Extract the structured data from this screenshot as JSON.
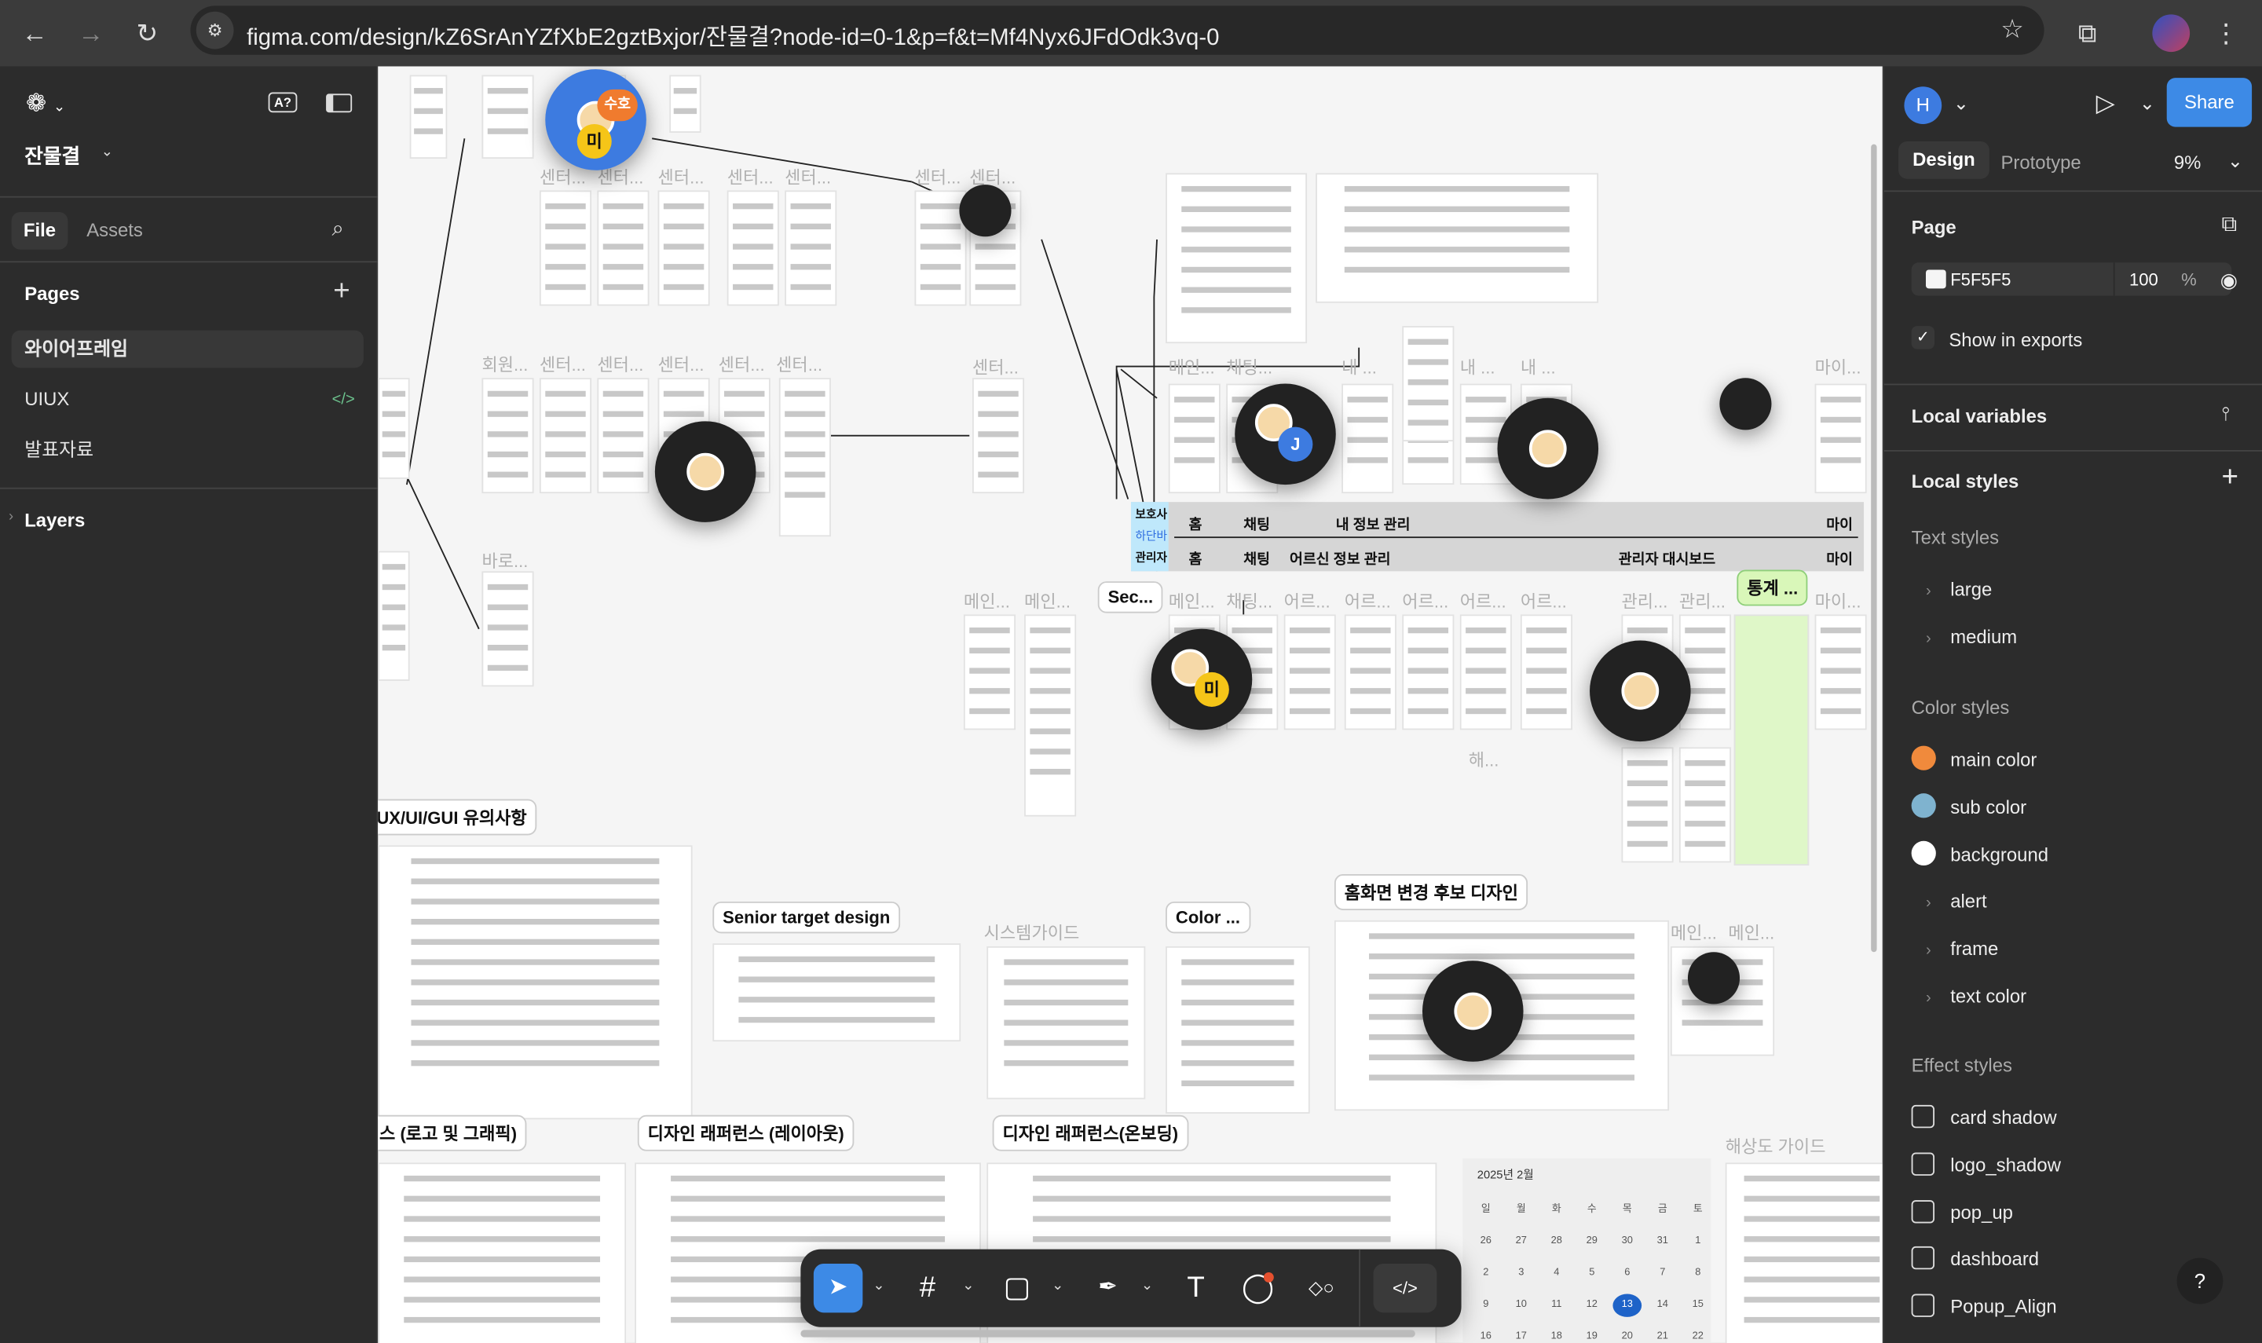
{
  "browser": {
    "url": "figma.com/design/kZ6SrAnYZfXbE2gztBxjor/잔물결?node-id=0-1&p=f&t=Mf4Nyx6JFdOdk3vq-0",
    "back": "←",
    "forward": "→",
    "reload": "↻",
    "star": "☆",
    "ext": "⧉",
    "menu": "⋮"
  },
  "left": {
    "file_name": "잔물결",
    "tabs": {
      "file": "File",
      "assets": "Assets"
    },
    "pages_title": "Pages",
    "pages": [
      {
        "label": "와이어프레임",
        "selected": true
      },
      {
        "label": "UIUX",
        "badge": "</>"
      },
      {
        "label": "발표자료"
      }
    ],
    "layers": "Layers",
    "accent": "#6cc28d"
  },
  "right": {
    "user": "H",
    "share": "Share",
    "share_color": "#3d8ae6",
    "tabs": {
      "design": "Design",
      "prototype": "Prototype"
    },
    "zoom": "9%",
    "page": {
      "title": "Page",
      "color": "F5F5F5",
      "opacity": "100",
      "unit": "%",
      "show_exports": "Show in exports",
      "show_checked": true
    },
    "local_variables": "Local variables",
    "local_styles": "Local styles",
    "text_styles": {
      "title": "Text styles",
      "items": [
        "large",
        "medium"
      ]
    },
    "color_styles": {
      "title": "Color styles",
      "items": [
        {
          "label": "main color",
          "color": "#f08a3c"
        },
        {
          "label": "sub color",
          "color": "#7fb3cf"
        },
        {
          "label": "background",
          "color": "#ffffff"
        },
        {
          "label": "alert",
          "group": true
        },
        {
          "label": "frame",
          "group": true
        },
        {
          "label": "text color",
          "group": true
        }
      ]
    },
    "effect_styles": {
      "title": "Effect styles",
      "items": [
        "card shadow",
        "logo_shadow",
        "pop_up",
        "dashboard",
        "Popup_Align"
      ]
    },
    "help": "?"
  },
  "canvas": {
    "sections": [
      "UX/UI/GUI 유의사항",
      "Senior target design",
      "Color ...",
      "홈화면 변경 후보 디자인",
      "스 (로고 및 그래픽)",
      "디자인 래퍼런스 (레이아웃)",
      "디자인 래퍼런스(온보딩)",
      "Sec...",
      "통계 ..."
    ],
    "frame_labels": [
      "센터...",
      "센터...",
      "센터...",
      "센터...",
      "센터...",
      "센터...",
      "센터...",
      "회원...",
      "센터...",
      "센터...",
      "센터...",
      "센터...",
      "센터...",
      "센터...",
      "메인...",
      "채팅...",
      "내 ...",
      "내 ...",
      "내 ...",
      "마이...",
      "바로...",
      "메인...",
      "메인...",
      "메인...",
      "채팅...",
      "어르...",
      "어르...",
      "어르...",
      "어르...",
      "어르...",
      "관리...",
      "관리...",
      "마이...",
      "해...",
      "시스템가이드",
      "메인...",
      "메인...",
      "해상도 가이드"
    ],
    "navbar": {
      "guardian": "보호사",
      "tabbar": "하단바",
      "admin": "관리자",
      "row1": [
        "홈",
        "채팅",
        "내 정보 관리",
        "마이"
      ],
      "row2": [
        "홈",
        "채팅",
        "어르신 정보 관리",
        "관리자 대시보드",
        "마이"
      ]
    },
    "calendar": {
      "title": "2025년 2월",
      "days": [
        "일",
        "월",
        "화",
        "수",
        "목",
        "금",
        "토"
      ],
      "weeks": [
        [
          "26",
          "27",
          "28",
          "29",
          "30",
          "31",
          "1"
        ],
        [
          "2",
          "3",
          "4",
          "5",
          "6",
          "7",
          "8"
        ],
        [
          "9",
          "10",
          "11",
          "12",
          "13",
          "14",
          "15"
        ],
        [
          "16",
          "17",
          "18",
          "19",
          "20",
          "21",
          "22"
        ]
      ],
      "today": "13"
    },
    "collaborators": [
      {
        "initials": "수호",
        "color": "#f07b2e"
      },
      {
        "initials": "미",
        "color": "#f5c518"
      },
      {
        "initials": "J",
        "color": "#3d7be0"
      },
      {
        "initials": "미",
        "color": "#f5c518"
      }
    ]
  },
  "toolbar": {
    "move": "➤",
    "frame": "#",
    "rect": "▢",
    "pen": "✒",
    "text": "T",
    "comment": "◯",
    "actions": "◇○",
    "dev": "</>",
    "caret": "⌄"
  }
}
